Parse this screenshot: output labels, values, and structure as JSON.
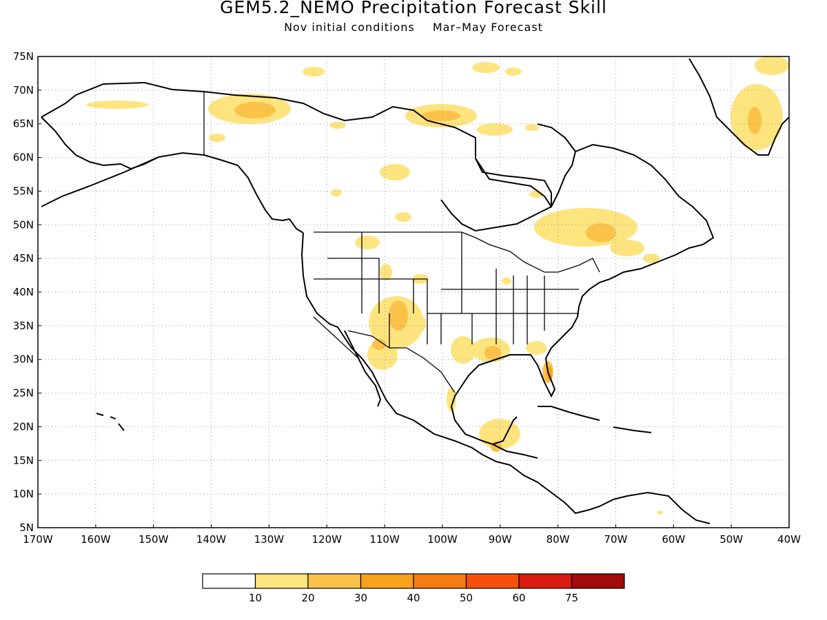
{
  "title": "GEM5.2_NEMO Precipitation Forecast Skill",
  "subtitle": {
    "initial": "Nov initial conditions",
    "forecast": "Mar–May Forecast"
  },
  "map": {
    "lon_range": [
      -170,
      -40
    ],
    "lat_range": [
      5,
      75
    ],
    "lat_ticks": [
      "5N",
      "10N",
      "15N",
      "20N",
      "25N",
      "30N",
      "35N",
      "40N",
      "45N",
      "50N",
      "55N",
      "60N",
      "65N",
      "70N",
      "75N"
    ],
    "lon_ticks": [
      "170W",
      "160W",
      "150W",
      "140W",
      "130W",
      "120W",
      "110W",
      "100W",
      "90W",
      "80W",
      "70W",
      "60W",
      "50W",
      "40W"
    ],
    "grid": true,
    "grid_style": "dotted"
  },
  "colorbar": {
    "labels": [
      "10",
      "20",
      "30",
      "40",
      "50",
      "60",
      "75"
    ],
    "colors": [
      "#ffffff",
      "#fde47e",
      "#fbc24a",
      "#f9a21b",
      "#f77c12",
      "#f6500b",
      "#d91a0e",
      "#a10b0a"
    ]
  },
  "shading": {
    "colors": {
      "light": "#fde47e",
      "mid": "#fbc24a",
      "orange": "#f9a21b"
    }
  }
}
